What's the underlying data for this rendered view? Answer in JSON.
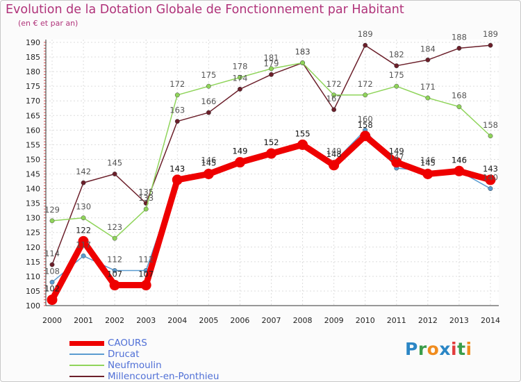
{
  "header": {
    "title": "Evolution de la Dotation Globale de Fonctionnement par Habitant",
    "subtitle": "(en € et par an)"
  },
  "logo": {
    "text": "Proxiti",
    "letters": [
      {
        "ch": "P",
        "color": "#2b86c5"
      },
      {
        "ch": "r",
        "color": "#3a9d4a"
      },
      {
        "ch": "o",
        "color": "#f08c1e"
      },
      {
        "ch": "x",
        "color": "#2b86c5"
      },
      {
        "ch": "i",
        "color": "#e23b3b"
      },
      {
        "ch": "t",
        "color": "#3a9d4a"
      },
      {
        "ch": "i",
        "color": "#f08c1e"
      }
    ]
  },
  "chart_data": {
    "type": "line",
    "title": "Evolution de la Dotation Globale de Fonctionnement par Habitant",
    "subtitle": "(en € et par an)",
    "x": [
      2000,
      2001,
      2002,
      2003,
      2004,
      2005,
      2006,
      2007,
      2008,
      2009,
      2010,
      2011,
      2012,
      2013,
      2014
    ],
    "ylim": [
      100,
      190
    ],
    "yticks": [
      100,
      105,
      110,
      115,
      120,
      125,
      130,
      135,
      140,
      145,
      150,
      155,
      160,
      165,
      170,
      175,
      180,
      185,
      190
    ],
    "grid": true,
    "legend_position": "bottom-left",
    "series": [
      {
        "name": "Millencourt-en-Ponthieu",
        "color": "#6b1f2a",
        "values": [
          114,
          142,
          145,
          135,
          163,
          166,
          174,
          179,
          183,
          167,
          189,
          182,
          184,
          188,
          189
        ]
      },
      {
        "name": "Neufmoulin",
        "color": "#8fd45a",
        "values": [
          129,
          130,
          123,
          133,
          172,
          175,
          178,
          181,
          183,
          172,
          172,
          175,
          171,
          168,
          158
        ]
      },
      {
        "name": "Drucat",
        "color": "#5a9bd0",
        "values": [
          108,
          117,
          112,
          112,
          143,
          146,
          149,
          152,
          155,
          149,
          160,
          147,
          146,
          146,
          140
        ]
      },
      {
        "name": "CAOURS",
        "color": "#ee0000",
        "values": [
          102,
          122,
          107,
          107,
          143,
          145,
          149,
          152,
          155,
          148,
          158,
          149,
          145,
          146,
          143
        ]
      }
    ],
    "legend": [
      "CAOURS",
      "Drucat",
      "Neufmoulin",
      "Millencourt-en-Ponthieu"
    ]
  }
}
